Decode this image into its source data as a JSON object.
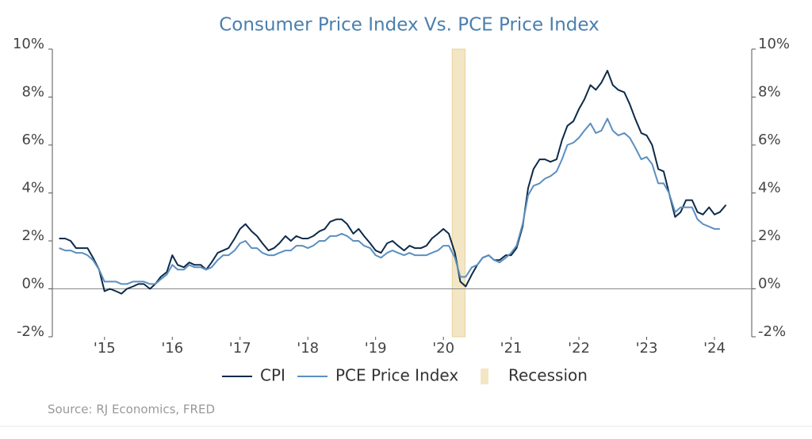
{
  "chart_data": {
    "type": "line",
    "title": "Consumer Price Index Vs. PCE Price Index",
    "source": "Source: RJ Economics, FRED",
    "x": [
      2014.33,
      2014.42,
      2014.5,
      2014.58,
      2014.67,
      2014.75,
      2014.83,
      2014.92,
      2015,
      2015.08,
      2015.17,
      2015.25,
      2015.33,
      2015.42,
      2015.5,
      2015.58,
      2015.67,
      2015.75,
      2015.83,
      2015.92,
      2016,
      2016.08,
      2016.17,
      2016.25,
      2016.33,
      2016.42,
      2016.5,
      2016.58,
      2016.67,
      2016.75,
      2016.83,
      2016.92,
      2017,
      2017.08,
      2017.17,
      2017.25,
      2017.33,
      2017.42,
      2017.5,
      2017.58,
      2017.67,
      2017.75,
      2017.83,
      2017.92,
      2018,
      2018.08,
      2018.17,
      2018.25,
      2018.33,
      2018.42,
      2018.5,
      2018.58,
      2018.67,
      2018.75,
      2018.83,
      2018.92,
      2019,
      2019.08,
      2019.17,
      2019.25,
      2019.33,
      2019.42,
      2019.5,
      2019.58,
      2019.67,
      2019.75,
      2019.83,
      2019.92,
      2020,
      2020.08,
      2020.17,
      2020.25,
      2020.33,
      2020.42,
      2020.5,
      2020.58,
      2020.67,
      2020.75,
      2020.83,
      2020.92,
      2021,
      2021.08,
      2021.17,
      2021.25,
      2021.33,
      2021.42,
      2021.5,
      2021.58,
      2021.67,
      2021.75,
      2021.83,
      2021.92,
      2022,
      2022.08,
      2022.17,
      2022.25,
      2022.33,
      2022.42,
      2022.5,
      2022.58,
      2022.67,
      2022.75,
      2022.83,
      2022.92,
      2023,
      2023.08,
      2023.17,
      2023.25,
      2023.33,
      2023.42,
      2023.5,
      2023.58,
      2023.67,
      2023.75,
      2023.83,
      2023.92,
      2024,
      2024.08,
      2024.17
    ],
    "series": [
      {
        "name": "CPI",
        "color": "#0d2a4a",
        "values": [
          2.1,
          2.1,
          2.0,
          1.7,
          1.7,
          1.7,
          1.3,
          0.8,
          -0.1,
          0.0,
          -0.1,
          -0.2,
          0.0,
          0.1,
          0.2,
          0.2,
          0.0,
          0.2,
          0.5,
          0.7,
          1.4,
          1.0,
          0.9,
          1.1,
          1.0,
          1.0,
          0.8,
          1.1,
          1.5,
          1.6,
          1.7,
          2.1,
          2.5,
          2.7,
          2.4,
          2.2,
          1.9,
          1.6,
          1.7,
          1.9,
          2.2,
          2.0,
          2.2,
          2.1,
          2.1,
          2.2,
          2.4,
          2.5,
          2.8,
          2.9,
          2.9,
          2.7,
          2.3,
          2.5,
          2.2,
          1.9,
          1.6,
          1.5,
          1.9,
          2.0,
          1.8,
          1.6,
          1.8,
          1.7,
          1.7,
          1.8,
          2.1,
          2.3,
          2.5,
          2.3,
          1.5,
          0.3,
          0.1,
          0.6,
          1.0,
          1.3,
          1.4,
          1.2,
          1.2,
          1.4,
          1.4,
          1.7,
          2.6,
          4.2,
          5.0,
          5.4,
          5.4,
          5.3,
          5.4,
          6.2,
          6.8,
          7.0,
          7.5,
          7.9,
          8.5,
          8.3,
          8.6,
          9.1,
          8.5,
          8.3,
          8.2,
          7.7,
          7.1,
          6.5,
          6.4,
          6.0,
          5.0,
          4.9,
          4.0,
          3.0,
          3.2,
          3.7,
          3.7,
          3.2,
          3.1,
          3.4,
          3.1,
          3.2,
          3.5
        ]
      },
      {
        "name": "PCE Price Index",
        "color": "#5b8fc0",
        "values": [
          1.7,
          1.6,
          1.6,
          1.5,
          1.5,
          1.4,
          1.2,
          0.8,
          0.3,
          0.3,
          0.3,
          0.2,
          0.2,
          0.3,
          0.3,
          0.3,
          0.2,
          0.2,
          0.4,
          0.6,
          1.0,
          0.8,
          0.8,
          1.0,
          0.9,
          0.9,
          0.8,
          0.9,
          1.2,
          1.4,
          1.4,
          1.6,
          1.9,
          2.0,
          1.7,
          1.7,
          1.5,
          1.4,
          1.4,
          1.5,
          1.6,
          1.6,
          1.8,
          1.8,
          1.7,
          1.8,
          2.0,
          2.0,
          2.2,
          2.2,
          2.3,
          2.2,
          2.0,
          2.0,
          1.8,
          1.7,
          1.4,
          1.3,
          1.5,
          1.6,
          1.5,
          1.4,
          1.5,
          1.4,
          1.4,
          1.4,
          1.5,
          1.6,
          1.8,
          1.8,
          1.3,
          0.5,
          0.5,
          0.9,
          1.0,
          1.3,
          1.4,
          1.2,
          1.1,
          1.3,
          1.5,
          1.8,
          2.7,
          3.9,
          4.3,
          4.4,
          4.6,
          4.7,
          4.9,
          5.4,
          6.0,
          6.1,
          6.3,
          6.6,
          6.9,
          6.5,
          6.6,
          7.1,
          6.6,
          6.4,
          6.5,
          6.3,
          5.9,
          5.4,
          5.5,
          5.2,
          4.4,
          4.4,
          4.0,
          3.2,
          3.4,
          3.4,
          3.4,
          2.9,
          2.7,
          2.6,
          2.5,
          2.5,
          null
        ]
      }
    ],
    "recession": {
      "name": "Recession",
      "start": 2020.13,
      "end": 2020.32,
      "color": "#f3e6c4"
    },
    "xlim": [
      2014.23,
      2024.55
    ],
    "xticks": [
      {
        "value": 2015,
        "label": "'15"
      },
      {
        "value": 2016,
        "label": "'16"
      },
      {
        "value": 2017,
        "label": "'17"
      },
      {
        "value": 2018,
        "label": "'18"
      },
      {
        "value": 2019,
        "label": "'19"
      },
      {
        "value": 2020,
        "label": "'20"
      },
      {
        "value": 2021,
        "label": "'21"
      },
      {
        "value": 2022,
        "label": "'22"
      },
      {
        "value": 2023,
        "label": "'23"
      },
      {
        "value": 2024,
        "label": "'24"
      }
    ],
    "ylim": [
      -2,
      10
    ],
    "yticks": [
      {
        "value": -2,
        "label": "-2%"
      },
      {
        "value": 0,
        "label": "0%"
      },
      {
        "value": 2,
        "label": "2%"
      },
      {
        "value": 4,
        "label": "4%"
      },
      {
        "value": 6,
        "label": "6%"
      },
      {
        "value": 8,
        "label": "8%"
      },
      {
        "value": 10,
        "label": "10%"
      }
    ],
    "y2lim": [
      -2,
      10
    ],
    "y2ticks": [
      {
        "value": -2,
        "label": "-2%"
      },
      {
        "value": 0,
        "label": "0%"
      },
      {
        "value": 2,
        "label": "2%"
      },
      {
        "value": 4,
        "label": "4%"
      },
      {
        "value": 6,
        "label": "6%"
      },
      {
        "value": 8,
        "label": "8%"
      },
      {
        "value": 10,
        "label": "10%"
      }
    ]
  }
}
